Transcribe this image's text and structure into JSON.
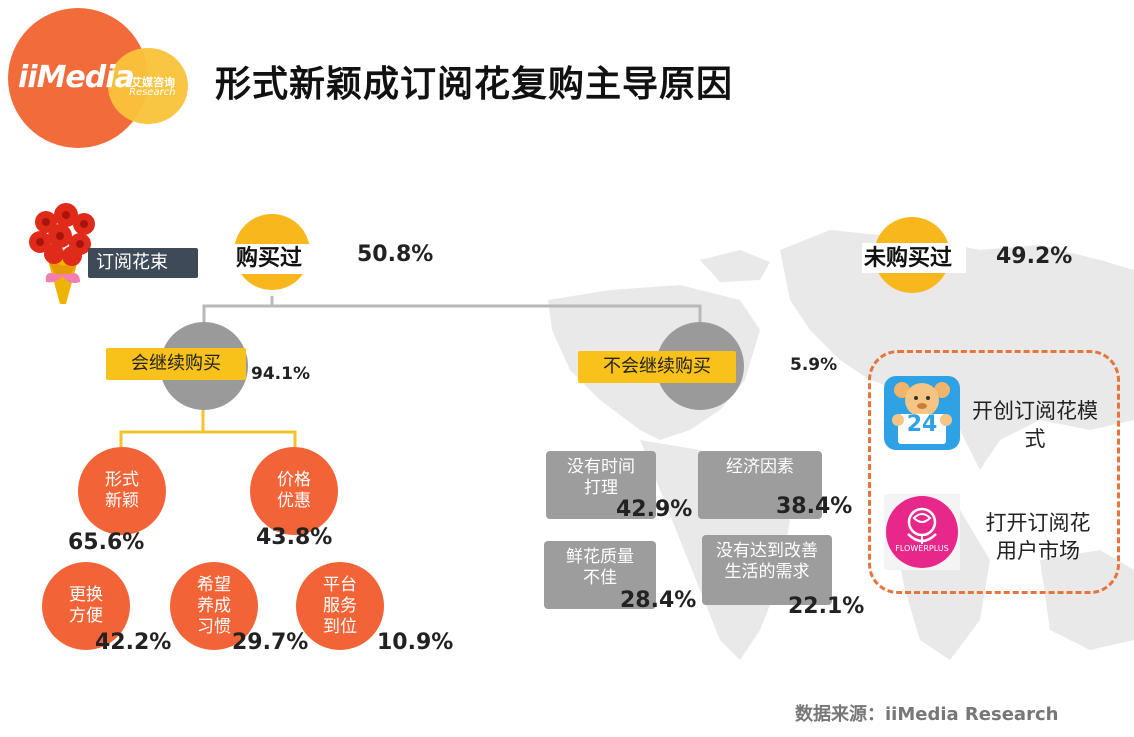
{
  "title": "形式新颖成订阅花复购主导原因",
  "logo": {
    "text": "iiMedia",
    "sub_cn": "艾媒咨询",
    "sub_en": "Research"
  },
  "bouquet_label": "订阅花束",
  "bought": {
    "label": "购买过",
    "percent": "50.8%"
  },
  "not_bought": {
    "label": "未购买过",
    "percent": "49.2%"
  },
  "continue": {
    "label": "会继续购买",
    "percent": "94.1%"
  },
  "not_continue": {
    "label": "不会继续购买",
    "percent": "5.9%"
  },
  "reasons_buy": [
    {
      "label": "形式新颖",
      "percent": "65.6%"
    },
    {
      "label": "价格优惠",
      "percent": "43.8%"
    },
    {
      "label": "更换方便",
      "percent": "42.2%"
    },
    {
      "label": "希望养成习惯",
      "percent": "29.7%"
    },
    {
      "label": "平台服务到位",
      "percent": "10.9%"
    }
  ],
  "reasons_not": [
    {
      "label": "没有时间打理",
      "percent": "42.9%"
    },
    {
      "label": "经济因素",
      "percent": "38.4%"
    },
    {
      "label": "鲜花质量不佳",
      "percent": "28.4%"
    },
    {
      "label": "没有达到改善生活的需求",
      "percent": "22.1%"
    }
  ],
  "apps": [
    {
      "icon_number": "24",
      "text": "开创订阅花模式"
    },
    {
      "brand": "FLOWERPLUS",
      "text": "打开订阅花用户市场"
    }
  ],
  "source": "数据来源：iiMedia Research",
  "colors": {
    "orange": "#f26338",
    "yellow": "#f8c21a",
    "gray": "#9d9d9d",
    "dark_tag": "#3e4a57"
  }
}
